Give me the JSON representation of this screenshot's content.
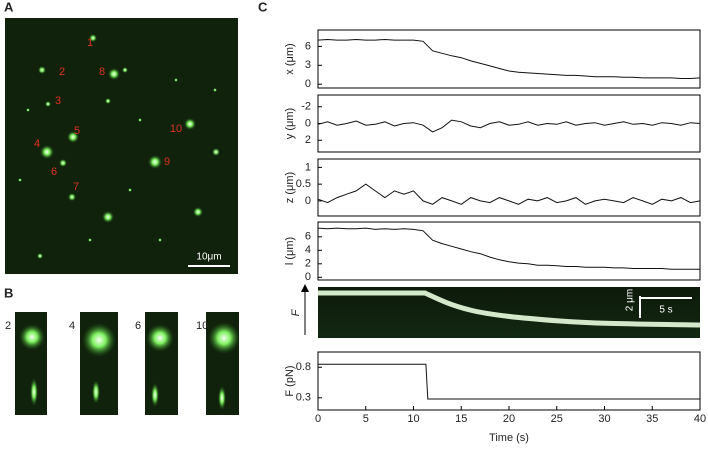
{
  "panels": {
    "a": "A",
    "b": "B",
    "c": "C"
  },
  "image_a": {
    "labels": [
      "1",
      "2",
      "3",
      "4",
      "5",
      "6",
      "7",
      "8",
      "9",
      "10"
    ],
    "scale_bar": "10μm"
  },
  "image_b": {
    "labels": [
      "2",
      "4",
      "6",
      "10"
    ]
  },
  "kymograph": {
    "axis_label": "F",
    "scale_y": "2 μm",
    "scale_x": "5 s"
  },
  "chart_data": [
    {
      "type": "line",
      "ylabel": "x (μm)",
      "xlim": [
        0,
        40
      ],
      "ylim": [
        -0.6,
        8.6
      ],
      "yticks": [
        0,
        3,
        6
      ],
      "x": [
        0,
        1,
        2,
        3,
        4,
        5,
        6,
        7,
        8,
        9,
        10,
        11,
        12,
        13,
        14,
        15,
        16,
        17,
        18,
        19,
        20,
        21,
        22,
        23,
        24,
        25,
        26,
        27,
        28,
        29,
        30,
        31,
        32,
        33,
        34,
        35,
        36,
        37,
        38,
        39,
        40
      ],
      "values": [
        7.0,
        7.1,
        7.0,
        7.0,
        7.1,
        7.0,
        7.0,
        7.1,
        7.0,
        7.0,
        7.0,
        6.8,
        5.3,
        4.9,
        4.5,
        4.2,
        3.7,
        3.3,
        2.9,
        2.5,
        2.1,
        1.9,
        1.8,
        1.7,
        1.6,
        1.5,
        1.4,
        1.4,
        1.3,
        1.2,
        1.2,
        1.2,
        1.1,
        1.1,
        1.0,
        1.0,
        1.0,
        1.0,
        0.9,
        0.9,
        1.0
      ]
    },
    {
      "type": "line",
      "ylabel": "y (μm)",
      "xlim": [
        0,
        40
      ],
      "ylim": [
        -3.4,
        3.4
      ],
      "y_inverted": true,
      "yticks": [
        -2,
        0,
        2
      ],
      "x": [
        0,
        1,
        2,
        3,
        4,
        5,
        6,
        7,
        8,
        9,
        10,
        11,
        12,
        13,
        14,
        15,
        16,
        17,
        18,
        19,
        20,
        21,
        22,
        23,
        24,
        25,
        26,
        27,
        28,
        29,
        30,
        31,
        32,
        33,
        34,
        35,
        36,
        37,
        38,
        39,
        40
      ],
      "values": [
        0.1,
        -0.2,
        0.2,
        0.0,
        -0.3,
        0.2,
        0.1,
        -0.2,
        0.3,
        0.0,
        -0.1,
        0.2,
        1.0,
        0.5,
        -0.4,
        -0.2,
        0.3,
        0.5,
        0.0,
        -0.2,
        0.2,
        0.1,
        -0.2,
        0.2,
        0.0,
        0.1,
        -0.2,
        0.2,
        0.0,
        -0.1,
        0.2,
        0.0,
        -0.2,
        0.1,
        0.0,
        0.2,
        -0.1,
        0.0,
        0.2,
        -0.1,
        0.0
      ]
    },
    {
      "type": "line",
      "ylabel": "z (μm)",
      "xlim": [
        0,
        40
      ],
      "ylim": [
        -0.45,
        1.25
      ],
      "yticks": [
        0,
        0.5,
        1
      ],
      "x": [
        0,
        1,
        2,
        3,
        4,
        5,
        6,
        7,
        8,
        9,
        10,
        11,
        12,
        13,
        14,
        15,
        16,
        17,
        18,
        19,
        20,
        21,
        22,
        23,
        24,
        25,
        26,
        27,
        28,
        29,
        30,
        31,
        32,
        33,
        34,
        35,
        36,
        37,
        38,
        39,
        40
      ],
      "values": [
        0.05,
        -0.05,
        0.1,
        0.2,
        0.3,
        0.5,
        0.3,
        0.1,
        0.3,
        0.2,
        0.3,
        0.0,
        -0.1,
        0.1,
        0.0,
        -0.1,
        0.1,
        0.0,
        -0.05,
        0.1,
        0.0,
        -0.1,
        0.05,
        0.0,
        0.1,
        -0.05,
        0.0,
        0.1,
        -0.1,
        0.0,
        0.05,
        0.0,
        -0.05,
        0.1,
        0.0,
        -0.1,
        0.05,
        0.0,
        0.1,
        -0.05,
        0.0
      ]
    },
    {
      "type": "line",
      "ylabel": "l (μm)",
      "xlim": [
        0,
        40
      ],
      "ylim": [
        -0.4,
        8.2
      ],
      "yticks": [
        0,
        2,
        4,
        6
      ],
      "x": [
        0,
        1,
        2,
        3,
        4,
        5,
        6,
        7,
        8,
        9,
        10,
        11,
        12,
        13,
        14,
        15,
        16,
        17,
        18,
        19,
        20,
        21,
        22,
        23,
        24,
        25,
        26,
        27,
        28,
        29,
        30,
        31,
        32,
        33,
        34,
        35,
        36,
        37,
        38,
        39,
        40
      ],
      "values": [
        7.3,
        7.2,
        7.3,
        7.2,
        7.2,
        7.3,
        7.1,
        7.2,
        7.1,
        7.2,
        7.1,
        6.9,
        5.5,
        5.0,
        4.6,
        4.2,
        3.8,
        3.5,
        3.0,
        2.6,
        2.3,
        2.1,
        2.0,
        1.8,
        1.8,
        1.7,
        1.6,
        1.6,
        1.5,
        1.5,
        1.5,
        1.4,
        1.4,
        1.3,
        1.3,
        1.3,
        1.3,
        1.2,
        1.2,
        1.2,
        1.2
      ]
    },
    {
      "type": "line",
      "ylabel": "F (pN)",
      "xlabel": "Time (s)",
      "xlim": [
        0,
        40
      ],
      "xticks": [
        0,
        5,
        10,
        15,
        20,
        25,
        30,
        35,
        40
      ],
      "ylim": [
        0.1,
        1.05
      ],
      "yticks": [
        0.3,
        0.8
      ],
      "x": [
        0,
        11.3,
        11.5,
        40
      ],
      "values": [
        0.85,
        0.85,
        0.28,
        0.28
      ]
    }
  ]
}
